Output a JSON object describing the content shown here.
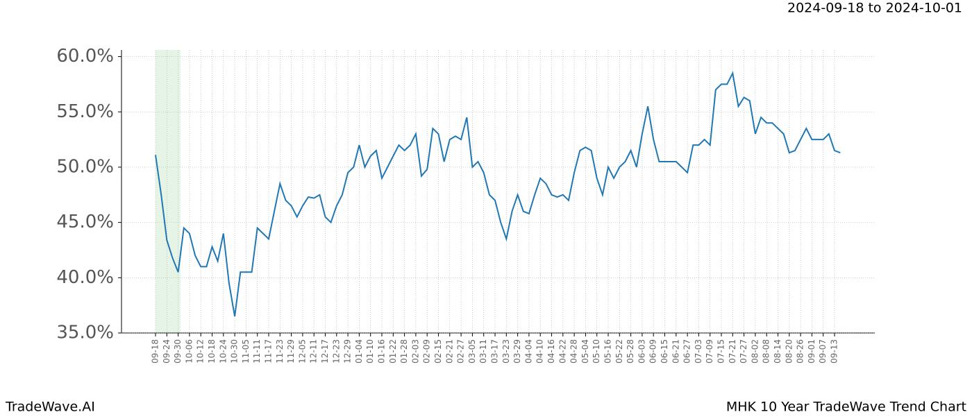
{
  "header": {
    "date_range": "2024-09-18 to 2024-10-01"
  },
  "footer": {
    "left": "TradeWave.AI",
    "right": "MHK 10 Year TradeWave Trend Chart"
  },
  "chart_data": {
    "type": "line",
    "color": "#1f77b4",
    "grid": true,
    "categories": [
      "09-18",
      null,
      "09-24",
      null,
      "09-30",
      null,
      "10-06",
      null,
      "10-12",
      null,
      "10-18",
      null,
      "10-24",
      null,
      "10-30",
      null,
      "11-05",
      null,
      "11-11",
      null,
      "11-17",
      null,
      "11-23",
      null,
      "11-29",
      null,
      "12-05",
      null,
      "12-11",
      null,
      "12-17",
      null,
      "12-23",
      null,
      "12-29",
      null,
      "01-04",
      null,
      "01-10",
      null,
      "01-16",
      null,
      "01-22",
      null,
      "01-28",
      null,
      "02-03",
      null,
      "02-09",
      null,
      "02-15",
      null,
      "02-21",
      null,
      "02-27",
      null,
      "03-05",
      null,
      "03-11",
      null,
      "03-17",
      null,
      "03-23",
      null,
      "03-29",
      null,
      "04-04",
      null,
      "04-10",
      null,
      "04-16",
      null,
      "04-22",
      null,
      "04-28",
      null,
      "05-04",
      null,
      "05-10",
      null,
      "05-16",
      null,
      "05-22",
      null,
      "05-28",
      null,
      "06-03",
      null,
      "06-09",
      null,
      "06-15",
      null,
      "06-21",
      null,
      "06-27",
      null,
      "07-03",
      null,
      "07-09",
      null,
      "07-15",
      null,
      "07-21",
      null,
      "07-27",
      null,
      "08-02",
      null,
      "08-08",
      null,
      "08-14",
      null,
      "08-20",
      null,
      "08-26",
      null,
      "09-01",
      null,
      "09-07",
      null,
      "09-13",
      null
    ],
    "values": [
      51.1,
      47.5,
      43.4,
      41.8,
      40.5,
      44.5,
      44.0,
      42.0,
      41.0,
      41.0,
      42.8,
      41.5,
      44.0,
      39.5,
      36.5,
      40.5,
      40.5,
      40.5,
      44.5,
      44.0,
      43.5,
      46.0,
      48.5,
      47.0,
      46.5,
      45.5,
      46.5,
      47.3,
      47.2,
      47.5,
      45.5,
      45.0,
      46.5,
      47.5,
      49.5,
      50.0,
      52.0,
      50.0,
      51.0,
      51.5,
      49.0,
      50.0,
      51.0,
      52.0,
      51.5,
      52.0,
      53.0,
      49.2,
      49.8,
      53.5,
      53.0,
      50.5,
      52.5,
      52.8,
      52.5,
      54.5,
      50.0,
      50.5,
      49.5,
      47.5,
      47.0,
      45.0,
      43.5,
      46.0,
      47.5,
      46.0,
      45.8,
      47.5,
      49.0,
      48.5,
      47.5,
      47.3,
      47.5,
      47.0,
      49.5,
      51.5,
      51.8,
      51.5,
      49.0,
      47.5,
      50.0,
      49.0,
      50.0,
      50.5,
      51.5,
      50.0,
      53.0,
      55.5,
      52.5,
      50.5,
      50.5,
      50.5,
      50.5,
      50.0,
      49.5,
      52.0,
      52.0,
      52.5,
      52.0,
      57.0,
      57.5,
      57.5,
      58.5,
      55.5,
      56.3,
      56.0,
      53.0,
      54.5,
      54.0,
      54.0,
      53.5,
      53.0,
      51.3,
      51.5,
      52.5,
      53.5,
      52.5,
      52.5,
      52.5,
      53.0,
      51.5,
      51.3
    ],
    "ylim": [
      35,
      60.6
    ],
    "yticks": [
      {
        "value": 35,
        "label": "35.0%"
      },
      {
        "value": 40,
        "label": "40.0%"
      },
      {
        "value": 45,
        "label": "45.0%"
      },
      {
        "value": 50,
        "label": "50.0%"
      },
      {
        "value": 55,
        "label": "55.0%"
      },
      {
        "value": 60,
        "label": "60.0%"
      }
    ]
  }
}
